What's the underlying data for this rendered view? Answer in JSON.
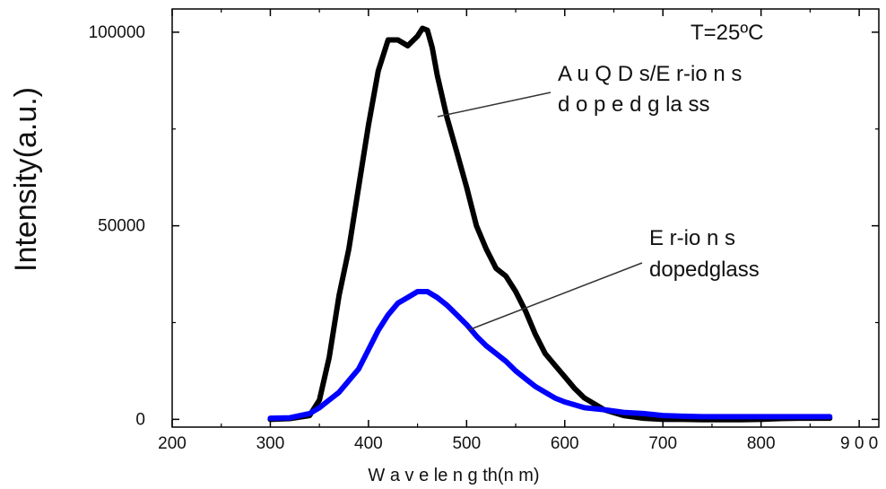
{
  "chart_data": {
    "type": "line",
    "title": "",
    "xlabel": "W a v e le n g th(n m)",
    "ylabel": "Intensity(a.u.)",
    "xlim": [
      200,
      920
    ],
    "ylim": [
      -2000,
      106000
    ],
    "xticks": [
      200,
      300,
      400,
      500,
      600,
      700,
      800,
      900
    ],
    "xtick_labels": [
      "200",
      "300",
      "400",
      "500",
      "600",
      "700",
      "800",
      "9 0 0"
    ],
    "yticks": [
      0,
      50000,
      100000
    ],
    "ytick_labels": [
      "0",
      "50000",
      "100000"
    ],
    "grid": false,
    "legend": "none",
    "series": [
      {
        "color": "#000000",
        "x": [
          300,
          320,
          340,
          350,
          360,
          370,
          380,
          390,
          400,
          410,
          420,
          430,
          440,
          450,
          455,
          460,
          465,
          470,
          480,
          490,
          500,
          510,
          520,
          530,
          540,
          550,
          560,
          570,
          580,
          590,
          600,
          610,
          620,
          640,
          660,
          680,
          700,
          720,
          740,
          760,
          780,
          800,
          820,
          840,
          860,
          870
        ],
        "y": [
          0,
          200,
          1000,
          5000,
          16000,
          32000,
          44000,
          60000,
          76000,
          90000,
          98000,
          98000,
          96500,
          99000,
          101000,
          100500,
          96000,
          89000,
          78000,
          69000,
          60000,
          50000,
          44000,
          39000,
          37000,
          33000,
          28000,
          22000,
          17000,
          14000,
          11000,
          8000,
          5500,
          2500,
          1000,
          300,
          0,
          0,
          -100,
          -100,
          -100,
          0,
          200,
          300,
          300,
          300
        ]
      },
      {
        "color": "#0000ff",
        "x": [
          300,
          320,
          340,
          350,
          360,
          370,
          380,
          390,
          400,
          410,
          420,
          430,
          440,
          450,
          460,
          470,
          480,
          490,
          500,
          510,
          520,
          530,
          540,
          550,
          560,
          570,
          580,
          590,
          600,
          620,
          640,
          660,
          680,
          700,
          720,
          740,
          760,
          780,
          800,
          820,
          840,
          860,
          870
        ],
        "y": [
          300,
          400,
          1500,
          3000,
          5000,
          7000,
          10000,
          13000,
          18000,
          23000,
          27000,
          30000,
          31500,
          33000,
          33000,
          31500,
          29500,
          27000,
          24500,
          21500,
          19000,
          17000,
          15000,
          12500,
          10500,
          8500,
          7000,
          5500,
          4500,
          3000,
          2500,
          1800,
          1500,
          1000,
          800,
          700,
          700,
          700,
          700,
          700,
          700,
          700,
          700
        ]
      }
    ],
    "annotations": {
      "temperature": "T=25ºC",
      "black_label_line1": "A u Q D s/E r-io n s",
      "black_label_line2": "d o p e d g la ss",
      "blue_label_line1": "E r-io n s",
      "blue_label_line2": "dopedglass"
    }
  }
}
